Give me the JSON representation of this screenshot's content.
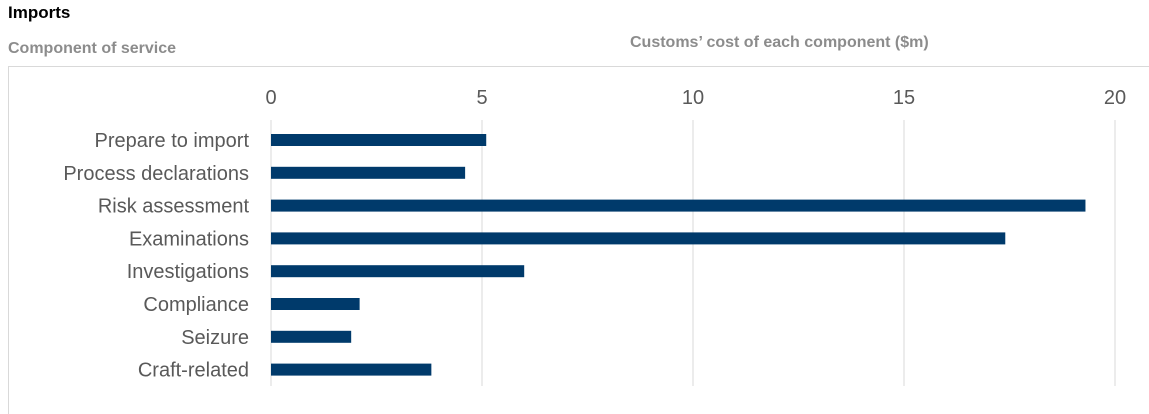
{
  "title": "Imports",
  "left_header": "Component of service",
  "right_header": "Customs’ cost of each component ($m)",
  "colors": {
    "bar": "#003a6b",
    "grid": "#d9d9d9",
    "text": "#595959",
    "header": "#8c8c8c"
  },
  "chart_data": {
    "type": "bar",
    "orientation": "horizontal",
    "categories": [
      "Prepare to import",
      "Process declarations",
      "Risk assessment",
      "Examinations",
      "Investigations",
      "Compliance",
      "Seizure",
      "Craft-related"
    ],
    "values": [
      5.1,
      4.6,
      19.3,
      17.4,
      6.0,
      2.1,
      1.9,
      3.8
    ],
    "xlim": [
      0,
      20
    ],
    "xticks": [
      "0",
      "5",
      "10",
      "15",
      "20"
    ],
    "xlabel": "Customs’ cost of each component ($m)",
    "ylabel": "Component of service",
    "grid": true
  }
}
